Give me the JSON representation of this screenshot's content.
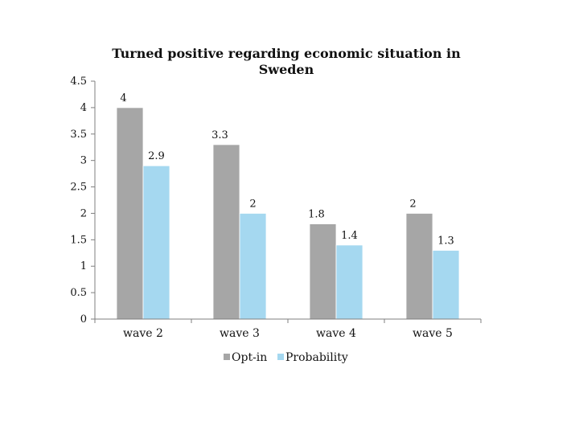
{
  "chart_data": {
    "type": "bar",
    "title_lines": [
      "Turned positive regarding economic situation in",
      "Sweden"
    ],
    "categories": [
      "wave 2",
      "wave 3",
      "wave 4",
      "wave 5"
    ],
    "series": [
      {
        "name": "Opt-in",
        "values": [
          4,
          3.3,
          1.8,
          2
        ],
        "color": "#a6a6a6"
      },
      {
        "name": "Probability",
        "values": [
          2.9,
          2,
          1.4,
          1.3
        ],
        "color": "#a5d8f0"
      }
    ],
    "data_labels": [
      [
        "4",
        "3.3",
        "1.8",
        "2"
      ],
      [
        "2.9",
        "2",
        "1.4",
        "1.3"
      ]
    ],
    "ylim": [
      0,
      4.5
    ],
    "yticks": [
      "0",
      "0.5",
      "1",
      "1.5",
      "2",
      "2.5",
      "3",
      "3.5",
      "4",
      "4.5"
    ],
    "xlabel": "",
    "ylabel": "",
    "grid": false,
    "legend_position": "bottom"
  }
}
